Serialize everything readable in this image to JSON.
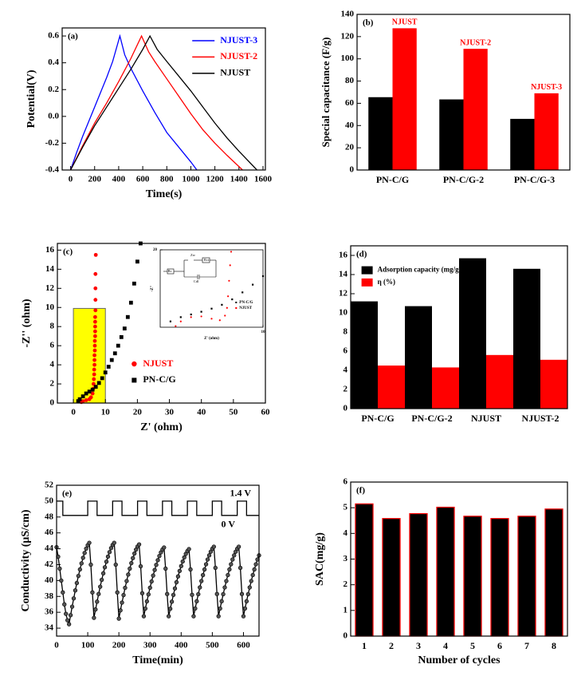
{
  "chart_data": [
    {
      "type": "line",
      "panel_label": "(a)",
      "xlabel": "Time(s)",
      "ylabel": "Potential(V)",
      "xlim": [
        -70,
        1620
      ],
      "xticks": [
        0,
        200,
        400,
        600,
        800,
        1000,
        1200,
        1400,
        1600
      ],
      "ylim": [
        -0.4,
        0.66
      ],
      "yticks": [
        -0.4,
        -0.2,
        {
          "value": 0,
          "label": "0.0"
        },
        0.2,
        0.4,
        0.6
      ],
      "legend": "upper right",
      "legend_colored_text": true,
      "series": [
        {
          "name": "NJUST-3",
          "color": "#0000ff",
          "x": [
            0,
            50,
            100,
            150,
            200,
            250,
            300,
            350,
            410,
            450,
            500,
            600,
            700,
            800,
            900,
            1000,
            1050
          ],
          "values": [
            -0.4,
            -0.27,
            -0.15,
            -0.04,
            0.07,
            0.18,
            0.29,
            0.41,
            0.6,
            0.46,
            0.36,
            0.19,
            0.03,
            -0.12,
            -0.23,
            -0.34,
            -0.4
          ]
        },
        {
          "name": "NJUST-2",
          "color": "#ff0000",
          "x": [
            0,
            100,
            200,
            300,
            400,
            500,
            590,
            650,
            700,
            800,
            900,
            1000,
            1100,
            1200,
            1300,
            1430
          ],
          "values": [
            -0.4,
            -0.22,
            -0.05,
            0.1,
            0.26,
            0.43,
            0.6,
            0.48,
            0.41,
            0.28,
            0.15,
            0.02,
            -0.1,
            -0.2,
            -0.29,
            -0.4
          ]
        },
        {
          "name": "NJUST",
          "color": "#000000",
          "x": [
            0,
            100,
            200,
            300,
            400,
            500,
            600,
            660,
            720,
            800,
            900,
            1000,
            1100,
            1200,
            1300,
            1400,
            1550
          ],
          "values": [
            -0.4,
            -0.23,
            -0.07,
            0.07,
            0.21,
            0.35,
            0.5,
            0.6,
            0.5,
            0.41,
            0.3,
            0.19,
            0.07,
            -0.05,
            -0.16,
            -0.26,
            -0.4
          ]
        }
      ]
    },
    {
      "type": "bar",
      "panel_label": "(b)",
      "ylabel": "Special capacitance (F/g)",
      "categories": [
        "PN-C/G",
        "PN-C/G-2",
        "PN-C/G-3"
      ],
      "ylim": [
        0,
        140
      ],
      "yticks": [
        0,
        20,
        40,
        60,
        80,
        100,
        120,
        140
      ],
      "series": [
        {
          "color": "#000000",
          "values": [
            65.5,
            63.5,
            46
          ]
        },
        {
          "color": "#ff0000",
          "values": [
            127.5,
            109,
            69
          ],
          "labels": [
            "NJUST",
            "NJUST-2",
            "NJUST-3"
          ]
        }
      ]
    },
    {
      "type": "scatter",
      "panel_label": "(c)",
      "xlabel": "Z' (ohm)",
      "ylabel": "-Z'' (ohm)",
      "xlim": [
        -5,
        60
      ],
      "xticks": [
        0,
        10,
        20,
        30,
        40,
        50,
        60
      ],
      "ylim": [
        0,
        16.7
      ],
      "yticks": [
        0,
        2,
        4,
        6,
        8,
        10,
        12,
        14,
        16
      ],
      "legend": "lower center",
      "legend_colored_text": true,
      "highlight": {
        "xlim": [
          0,
          10
        ],
        "ylim": [
          0,
          9.9
        ],
        "color": "#ffff00"
      },
      "series": [
        {
          "name": "NJUST",
          "color": "#ff0000",
          "marker": "circle",
          "x": [
            2.5,
            3,
            4,
            5,
            5.5,
            6,
            6.2,
            6.3,
            6.4,
            6.5,
            6.5,
            6.6,
            6.6,
            6.6,
            6.7,
            6.7,
            6.7,
            6.8,
            6.8,
            6.8,
            6.8,
            6.8,
            6.9,
            6.9,
            6.9,
            6.9,
            7
          ],
          "values": [
            0.1,
            0.2,
            0.3,
            0.4,
            0.6,
            1,
            1.5,
            2,
            2.5,
            3,
            3.5,
            4,
            4.5,
            5,
            5.5,
            6,
            6.5,
            7,
            7.5,
            8,
            8.5,
            9,
            9.7,
            10.8,
            12,
            13.5,
            15.5
          ]
        },
        {
          "name": "PN-C/G",
          "color": "#000000",
          "marker": "square",
          "x": [
            1.5,
            2,
            3,
            4,
            5,
            6,
            7,
            8,
            9,
            10,
            11,
            12,
            13,
            14,
            15,
            16,
            17,
            18,
            19,
            20,
            21
          ],
          "values": [
            0.2,
            0.4,
            0.7,
            1,
            1.2,
            1.4,
            1.7,
            2.1,
            2.6,
            3.2,
            3.8,
            4.5,
            5.2,
            6,
            6.9,
            7.8,
            9,
            10.5,
            12.5,
            14.8,
            16.7
          ]
        }
      ],
      "inset": {
        "type": "scatter",
        "xlabel": "Z' (ohm)",
        "ylabel": "-Z''",
        "xlim": [
          0,
          10
        ],
        "xticks": [
          10
        ],
        "ylim": [
          0,
          20
        ],
        "yticks": [
          20
        ],
        "legend": "lower right",
        "circuit_labels": [
          "Rs",
          "Zw",
          "Rct",
          "Cdl"
        ],
        "series": [
          {
            "name": "PN-C/G",
            "color": "#000000",
            "marker": "square",
            "x": [
              1,
              2,
              3,
              4,
              5,
              6,
              7,
              8,
              9,
              10
            ],
            "values": [
              1.5,
              2.6,
              3.3,
              4,
              4.8,
              5.8,
              7.2,
              9,
              11,
              13.2
            ]
          },
          {
            "name": "NJUST",
            "color": "#ff0000",
            "marker": "circle",
            "x": [
              1.5,
              2,
              3,
              4,
              5,
              5.8,
              6.3,
              6.5,
              6.6,
              6.7,
              6.8,
              6.9
            ],
            "values": [
              0.3,
              1.5,
              2.6,
              2.8,
              2.2,
              1.8,
              3,
              5,
              8,
              12,
              16,
              19.5
            ]
          }
        ]
      }
    },
    {
      "type": "bar",
      "panel_label": "(d)",
      "categories": [
        "PN-C/G",
        "PN-C/G-2",
        "NJUST",
        "NJUST-2"
      ],
      "ylim": [
        0,
        17
      ],
      "yticks": [
        0,
        2,
        4,
        6,
        8,
        10,
        12,
        14,
        16
      ],
      "legend": "upper left",
      "series": [
        {
          "name": "Adsorption capacity (mg/g)",
          "color": "#000000",
          "values": [
            11.2,
            10.7,
            15.7,
            14.6
          ]
        },
        {
          "name": "η (%)",
          "color": "#ff0000",
          "values": [
            4.5,
            4.3,
            5.6,
            5.1
          ]
        }
      ]
    },
    {
      "type": "line",
      "panel_label": "(e)",
      "xlabel": "Time(min)",
      "ylabel": "Conductivity (μS/cm)",
      "xlim": [
        0,
        650
      ],
      "xticks": [
        0,
        100,
        200,
        300,
        400,
        500,
        600
      ],
      "ylim": [
        33,
        52
      ],
      "yticks": [
        34,
        36,
        38,
        40,
        42,
        44,
        46,
        48,
        50,
        52
      ],
      "high_label": "1.4 V",
      "low_label": "0 V",
      "series": [
        {
          "color": "#000000",
          "marker": "circle",
          "x": [
            0,
            5,
            10,
            15,
            20,
            25,
            30,
            35,
            40,
            45,
            50,
            55,
            60,
            65,
            70,
            75,
            80,
            85,
            90,
            95,
            100,
            105,
            110,
            115,
            120,
            125,
            130,
            135,
            140,
            145,
            150,
            155,
            160,
            165,
            170,
            175,
            180,
            185,
            190,
            195,
            200,
            205,
            210,
            215,
            220,
            225,
            230,
            235,
            240,
            245,
            250,
            255,
            260,
            265,
            270,
            275,
            280,
            285,
            290,
            295,
            300,
            305,
            310,
            315,
            320,
            325,
            330,
            335,
            340,
            345,
            350,
            355,
            360,
            365,
            370,
            375,
            380,
            385,
            390,
            395,
            400,
            405,
            410,
            415,
            420,
            425,
            430,
            435,
            440,
            445,
            450,
            455,
            460,
            465,
            470,
            475,
            480,
            485,
            490,
            495,
            500,
            505,
            510,
            515,
            520,
            525,
            530,
            535,
            540,
            545,
            550,
            555,
            560,
            565,
            570,
            575,
            580,
            585,
            590,
            595,
            600,
            605,
            610,
            615,
            620,
            625,
            630,
            635,
            640,
            645,
            650
          ],
          "values": [
            44.2,
            43.0,
            41.5,
            40.0,
            38.5,
            37.0,
            35.8,
            35.0,
            34.5,
            35.64,
            36.71,
            37.75,
            38.75,
            39.69,
            40.58,
            41.4,
            42.16,
            42.86,
            43.48,
            44.02,
            44.45,
            44.75,
            42.0,
            38.5,
            35.3,
            36.35,
            37.34,
            38.3,
            39.22,
            40.09,
            40.91,
            41.67,
            42.37,
            43.01,
            43.58,
            44.08,
            44.48,
            44.75,
            42.0,
            38.5,
            35.2,
            36.24,
            37.22,
            38.17,
            39.08,
            39.94,
            40.75,
            41.5,
            42.19,
            42.83,
            43.4,
            43.89,
            44.28,
            44.55,
            41.8,
            38.4,
            35.5,
            36.47,
            37.37,
            38.25,
            39.09,
            39.88,
            40.63,
            41.33,
            41.97,
            42.56,
            43.09,
            43.54,
            43.9,
            44.16,
            41.5,
            38.3,
            35.5,
            36.44,
            37.33,
            38.19,
            39.01,
            39.78,
            40.52,
            41.2,
            41.82,
            42.4,
            42.91,
            43.35,
            43.71,
            43.96,
            41.4,
            38.2,
            35.5,
            36.48,
            37.39,
            38.28,
            39.13,
            39.94,
            40.69,
            41.4,
            42.05,
            42.65,
            43.17,
            43.63,
            44.0,
            44.26,
            41.6,
            38.3,
            35.5,
            36.48,
            37.39,
            38.28,
            39.13,
            39.94,
            40.69,
            41.4,
            42.05,
            42.65,
            43.17,
            43.63,
            44.0,
            44.26,
            41.6,
            38.3,
            35.5,
            36.48,
            37.39,
            38.28,
            39.13,
            39.94,
            40.69,
            41.4,
            42.05,
            42.65,
            43.17
          ]
        },
        {
          "color": "#000000",
          "x": [
            0,
            20,
            20,
            100,
            100,
            130,
            130,
            180,
            180,
            210,
            210,
            260,
            260,
            290,
            290,
            340,
            340,
            370,
            370,
            420,
            420,
            450,
            450,
            500,
            500,
            530,
            530,
            580,
            580,
            610,
            610,
            650
          ],
          "values": [
            50,
            50,
            48.2,
            48.2,
            50,
            50,
            48.2,
            48.2,
            50,
            50,
            48.2,
            48.2,
            50,
            50,
            48.2,
            48.2,
            50,
            50,
            48.2,
            48.2,
            50,
            50,
            48.2,
            48.2,
            50,
            50,
            48.2,
            48.2,
            50,
            50,
            48.2,
            48.2
          ]
        }
      ]
    },
    {
      "type": "bar",
      "panel_label": "(f)",
      "xlabel": "Number of cycles",
      "ylabel": "SAC(mg/g)",
      "categories": [
        "1",
        "2",
        "3",
        "4",
        "5",
        "6",
        "7",
        "8"
      ],
      "ylim": [
        0,
        6
      ],
      "yticks": [
        0,
        1,
        2,
        3,
        4,
        5,
        6
      ],
      "series": [
        {
          "color": "#000000",
          "edgecolor": "#ff0000",
          "values": [
            5.15,
            4.58,
            4.77,
            5.02,
            4.67,
            4.58,
            4.67,
            4.95
          ]
        }
      ]
    }
  ]
}
